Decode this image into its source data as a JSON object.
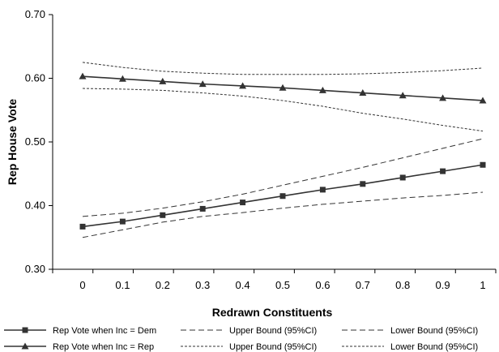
{
  "chart_data": {
    "type": "line",
    "xlabel": "Redrawn Constituents",
    "ylabel": "Rep House Vote",
    "x": [
      0,
      0.1,
      0.2,
      0.3,
      0.4,
      0.5,
      0.6,
      0.7,
      0.8,
      0.9,
      1
    ],
    "x_tick_labels": [
      "0",
      "0.1",
      "0.2",
      "0.3",
      "0.4",
      "0.5",
      "0.6",
      "0.7",
      "0.8",
      "0.9",
      "1"
    ],
    "y_tick_labels": [
      "0.30",
      "0.40",
      "0.50",
      "0.60",
      "0.70"
    ],
    "y_ticks": [
      0.3,
      0.4,
      0.5,
      0.6,
      0.7
    ],
    "ylim": [
      0.3,
      0.7
    ],
    "grid": false,
    "legend_position": "bottom",
    "series": [
      {
        "name": "Rep Vote when Inc = Dem",
        "style": "solid",
        "marker": "square",
        "values": [
          0.367,
          0.375,
          0.385,
          0.395,
          0.405,
          0.415,
          0.425,
          0.434,
          0.444,
          0.454,
          0.464
        ]
      },
      {
        "name": "Upper Bound (95%CI)",
        "style": "dashed",
        "marker": "none",
        "values": [
          0.383,
          0.388,
          0.396,
          0.406,
          0.418,
          0.432,
          0.446,
          0.46,
          0.475,
          0.49,
          0.505
        ]
      },
      {
        "name": "Lower Bound (95%CI)",
        "style": "dashed",
        "marker": "none",
        "values": [
          0.35,
          0.362,
          0.374,
          0.383,
          0.389,
          0.396,
          0.402,
          0.407,
          0.412,
          0.416,
          0.421
        ]
      },
      {
        "name": "Rep Vote when Inc = Rep",
        "style": "solid",
        "marker": "triangle",
        "values": [
          0.603,
          0.599,
          0.595,
          0.591,
          0.588,
          0.585,
          0.581,
          0.577,
          0.573,
          0.569,
          0.565
        ]
      },
      {
        "name": "Upper Bound (95%CI)",
        "style": "dotted",
        "marker": "none",
        "values": [
          0.625,
          0.617,
          0.611,
          0.608,
          0.606,
          0.606,
          0.606,
          0.607,
          0.609,
          0.612,
          0.616
        ]
      },
      {
        "name": "Lower Bound (95%CI)",
        "style": "dotted",
        "marker": "none",
        "values": [
          0.584,
          0.583,
          0.581,
          0.577,
          0.572,
          0.565,
          0.556,
          0.545,
          0.536,
          0.526,
          0.517
        ]
      }
    ]
  },
  "colors": {
    "line": "#333333",
    "axis": "#000000",
    "background": "#ffffff"
  }
}
